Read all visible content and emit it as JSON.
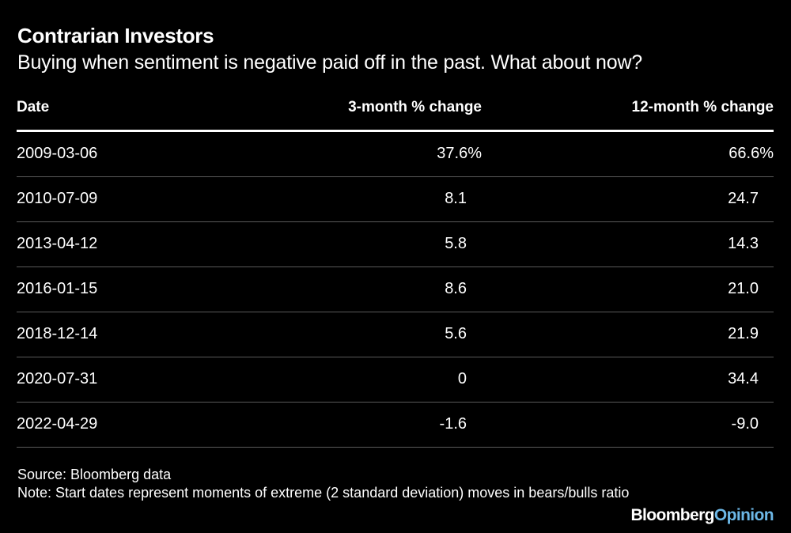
{
  "chart_data": {
    "type": "table",
    "title": "Contrarian Investors",
    "subtitle": "Buying when sentiment is negative paid off in the past. What about now?",
    "columns": [
      "Date",
      "3-month % change",
      "12-month % change"
    ],
    "rows": [
      [
        "2009-03-06",
        "37.6%",
        "66.6%"
      ],
      [
        "2010-07-09",
        "8.1",
        "24.7"
      ],
      [
        "2013-04-12",
        "5.8",
        "14.3"
      ],
      [
        "2016-01-15",
        "8.6",
        "21.0"
      ],
      [
        "2018-12-14",
        "5.6",
        "21.9"
      ],
      [
        "2020-07-31",
        "0",
        "34.4"
      ],
      [
        "2022-04-29",
        "-1.6",
        "-9.0"
      ]
    ],
    "source": "Source: Bloomberg data",
    "note": "Note: Start dates represent moments of extreme (2 standard deviation) moves in bears/bulls ratio"
  },
  "branding": {
    "logo_main": "Bloomberg",
    "logo_accent": "Opinion",
    "accent_color": "#6cb7e6"
  },
  "colors": {
    "background": "#000000",
    "text": "#ffffff",
    "row_divider": "#5a5a5a"
  }
}
